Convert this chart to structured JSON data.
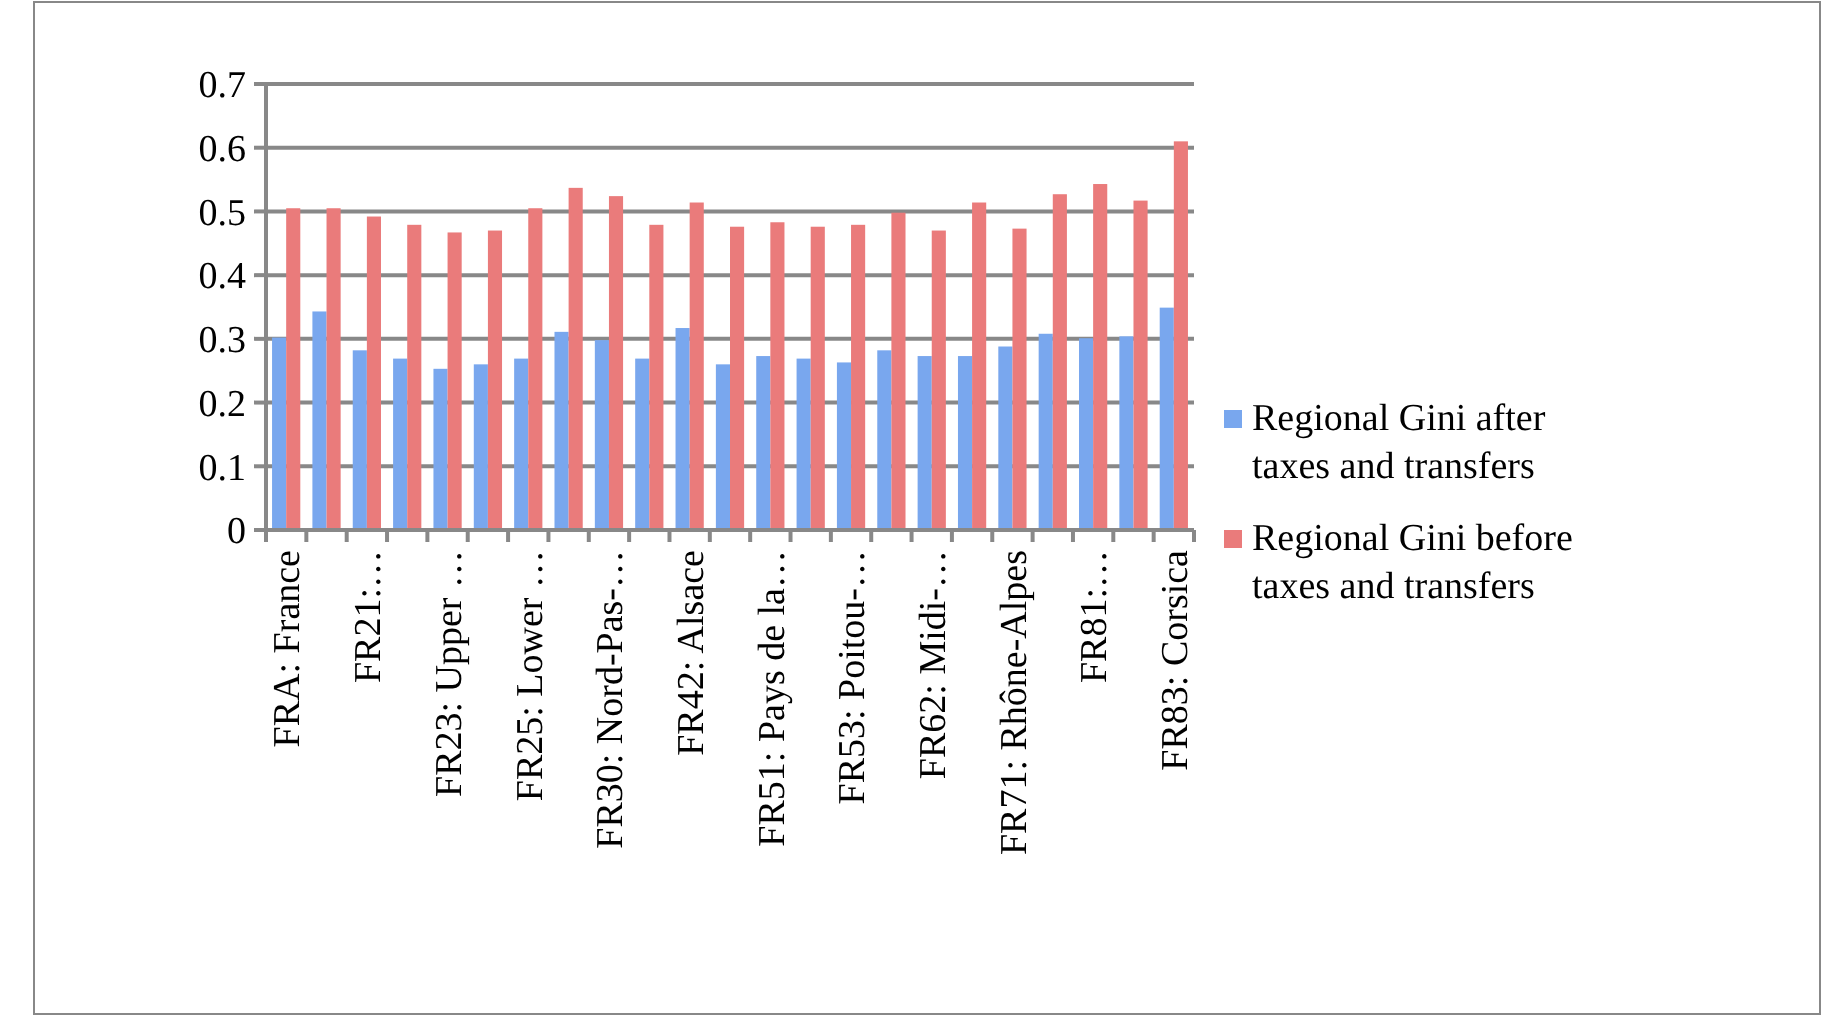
{
  "chart_data": {
    "type": "bar",
    "categories": [
      "FRA: France",
      null,
      "FR21:…",
      null,
      "FR23: Upper …",
      null,
      "FR25: Lower …",
      null,
      "FR30: Nord-Pas-…",
      null,
      "FR42: Alsace",
      null,
      "FR51: Pays de la…",
      null,
      "FR53: Poitou-…",
      null,
      "FR62: Midi-…",
      null,
      "FR71: Rhône-Alpes",
      null,
      "FR81:…",
      null,
      "FR83: Corsica"
    ],
    "series": [
      {
        "name": "Regional Gini after taxes and transfers",
        "color": "#79a7ee",
        "values": [
          0.302,
          0.343,
          0.282,
          0.269,
          0.253,
          0.26,
          0.269,
          0.311,
          0.298,
          0.269,
          0.317,
          0.26,
          0.273,
          0.269,
          0.263,
          0.282,
          0.273,
          0.273,
          0.288,
          0.308,
          0.301,
          0.304,
          0.349
        ]
      },
      {
        "name": "Regional Gini before taxes and transfers",
        "color": "#ea7b7b",
        "values": [
          0.505,
          0.505,
          0.492,
          0.479,
          0.467,
          0.47,
          0.505,
          0.537,
          0.524,
          0.479,
          0.514,
          0.476,
          0.483,
          0.476,
          0.479,
          0.498,
          0.47,
          0.514,
          0.473,
          0.527,
          0.543,
          0.517,
          0.61
        ]
      }
    ],
    "ylim": [
      0,
      0.7
    ],
    "yticks": [
      0,
      0.1,
      0.2,
      0.3,
      0.4,
      0.5,
      0.6,
      0.7
    ],
    "grid": "y",
    "legend": "right"
  }
}
